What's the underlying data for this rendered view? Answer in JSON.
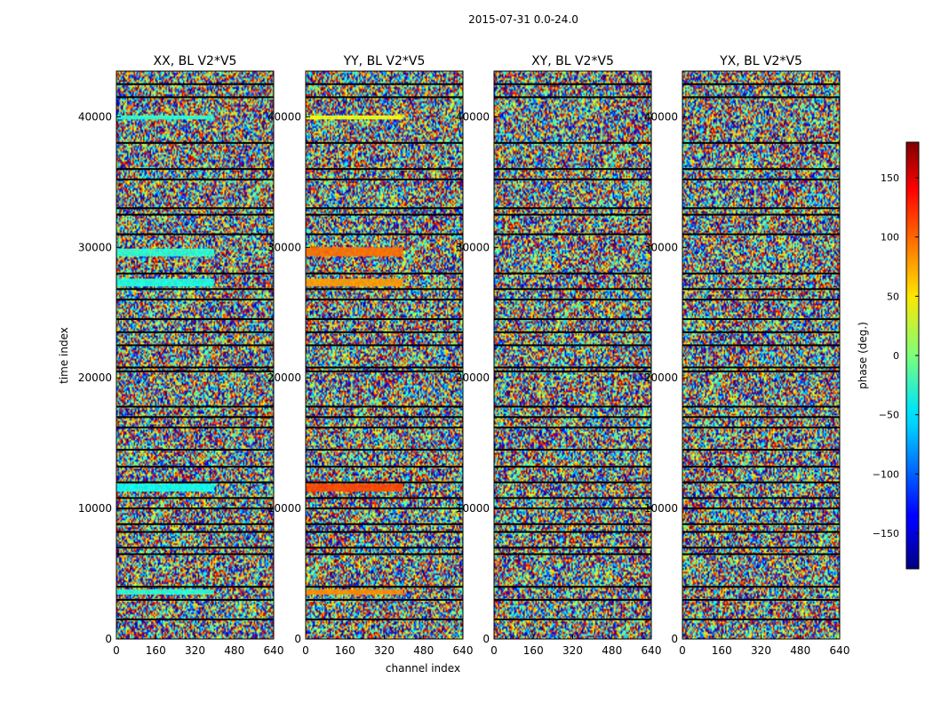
{
  "figure": {
    "suptitle": "2015-07-31 0.0-24.0",
    "xlabel": "channel index",
    "ylabel": "time index"
  },
  "chart_data": {
    "type": "heatmap",
    "colormap": "jet",
    "shared_axes": {
      "xlim": [
        0,
        640
      ],
      "ylim": [
        0,
        43500
      ],
      "x_ticks": [
        0,
        160,
        320,
        480,
        640
      ],
      "y_ticks": [
        0,
        10000,
        20000,
        30000,
        40000
      ]
    },
    "panels": [
      {
        "title": "XX, BL V2*V5"
      },
      {
        "title": "YY, BL V2*V5"
      },
      {
        "title": "XY, BL V2*V5"
      },
      {
        "title": "YX, BL V2*V5"
      }
    ],
    "colorbar": {
      "label": "phase (deg.)",
      "vmin": -180,
      "vmax": 180,
      "ticks": [
        -150,
        -100,
        -50,
        0,
        50,
        100,
        150
      ]
    },
    "gap_rows": [
      1500,
      3000,
      4000,
      6500,
      7000,
      8200,
      8800,
      10000,
      10800,
      12000,
      13200,
      14500,
      16200,
      17000,
      17800,
      20500,
      20800,
      22500,
      23500,
      24500,
      26000,
      26800,
      28000,
      31000,
      32500,
      33000,
      35200,
      36000,
      38000,
      41500,
      42500
    ],
    "coherent_bands": [
      {
        "panel": 0,
        "t_start": 3400,
        "t_end": 3800,
        "phase": -30
      },
      {
        "panel": 0,
        "t_start": 11300,
        "t_end": 11900,
        "phase": -40
      },
      {
        "panel": 0,
        "t_start": 27000,
        "t_end": 27600,
        "phase": -35
      },
      {
        "panel": 0,
        "t_start": 29300,
        "t_end": 29900,
        "phase": -30
      },
      {
        "panel": 0,
        "t_start": 39800,
        "t_end": 40100,
        "phase": -30
      },
      {
        "panel": 1,
        "t_start": 3400,
        "t_end": 3800,
        "phase": 85
      },
      {
        "panel": 1,
        "t_start": 11300,
        "t_end": 11900,
        "phase": 110
      },
      {
        "panel": 1,
        "t_start": 27000,
        "t_end": 27600,
        "phase": 80
      },
      {
        "panel": 1,
        "t_start": 29300,
        "t_end": 30000,
        "phase": 95
      },
      {
        "panel": 1,
        "t_start": 39800,
        "t_end": 40100,
        "phase": 40
      }
    ]
  }
}
